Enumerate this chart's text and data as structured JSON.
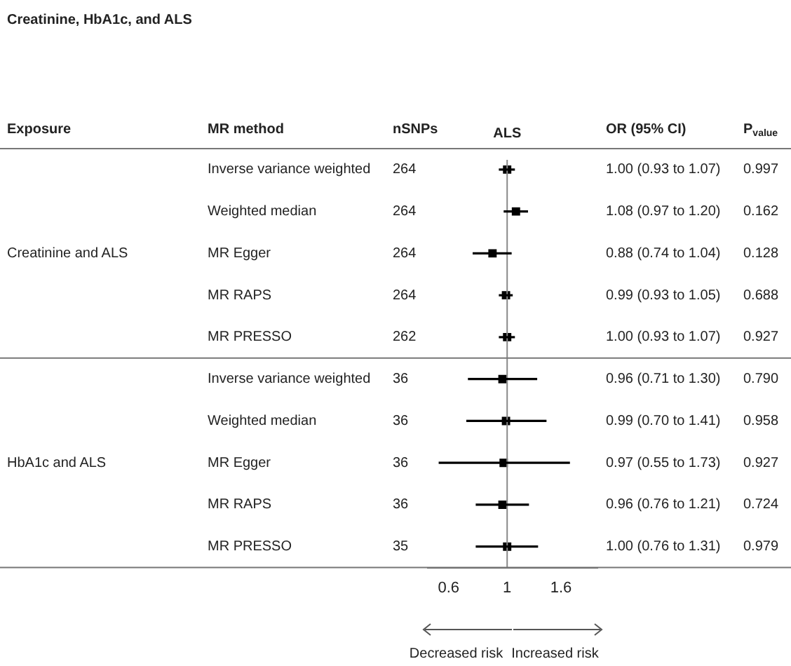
{
  "chart_data": {
    "type": "scatter",
    "title": "Creatinine, HbA1c, and ALS",
    "orientation": "horizontal",
    "log": "x",
    "marker": "square",
    "grid": false,
    "legend": false,
    "categories": [
      "Inverse variance weighted",
      "Weighted median",
      "MR Egger",
      "MR RAPS",
      "MR PRESSO",
      "Inverse variance weighted",
      "Weighted median",
      "MR Egger",
      "MR RAPS",
      "MR PRESSO"
    ],
    "series": [
      {
        "color": "#000000",
        "values": [
          1.0,
          1.08,
          0.88,
          0.99,
          1.0,
          0.96,
          0.99,
          0.97,
          0.96,
          1.0
        ],
        "errors": [
          [
            0.93,
            1.07
          ],
          [
            0.97,
            1.2
          ],
          [
            0.74,
            1.04
          ],
          [
            0.93,
            1.05
          ],
          [
            0.93,
            1.07
          ],
          [
            0.71,
            1.3
          ],
          [
            0.7,
            1.41
          ],
          [
            0.55,
            1.73
          ],
          [
            0.76,
            1.21
          ],
          [
            0.76,
            1.31
          ]
        ],
        "value_labels": [
          "1.00 (0.93 to 1.07)",
          "1.08 (0.97 to 1.20)",
          "0.88 (0.74 to 1.04)",
          "0.99 (0.93 to 1.05)",
          "1.00 (0.93 to 1.07)",
          "0.96 (0.71 to 1.30)",
          "0.99 (0.70 to 1.41)",
          "0.97 (0.55 to 1.73)",
          "0.96 (0.76 to 1.21)",
          "1.00 (0.76 to 1.31)"
        ]
      }
    ],
    "xlim": [
      0.5,
      2.2
    ],
    "xticks": [
      0.6,
      1,
      1.6
    ],
    "ref_lines": [
      {
        "axis": "x",
        "value": 1
      }
    ],
    "annotations": [
      "Exposure",
      "MR method",
      "nSNPs",
      "ALS",
      "OR (95% CI)",
      "P$_{value}$",
      "Creatinine and ALS",
      "HbA1c and ALS",
      "264",
      "264",
      "264",
      "264",
      "262",
      "36",
      "36",
      "36",
      "36",
      "35",
      "0.997",
      "0.162",
      "0.128",
      "0.688",
      "0.927",
      "0.790",
      "0.958",
      "0.927",
      "0.724",
      "0.979",
      "Decreased risk",
      "Increased risk"
    ]
  }
}
